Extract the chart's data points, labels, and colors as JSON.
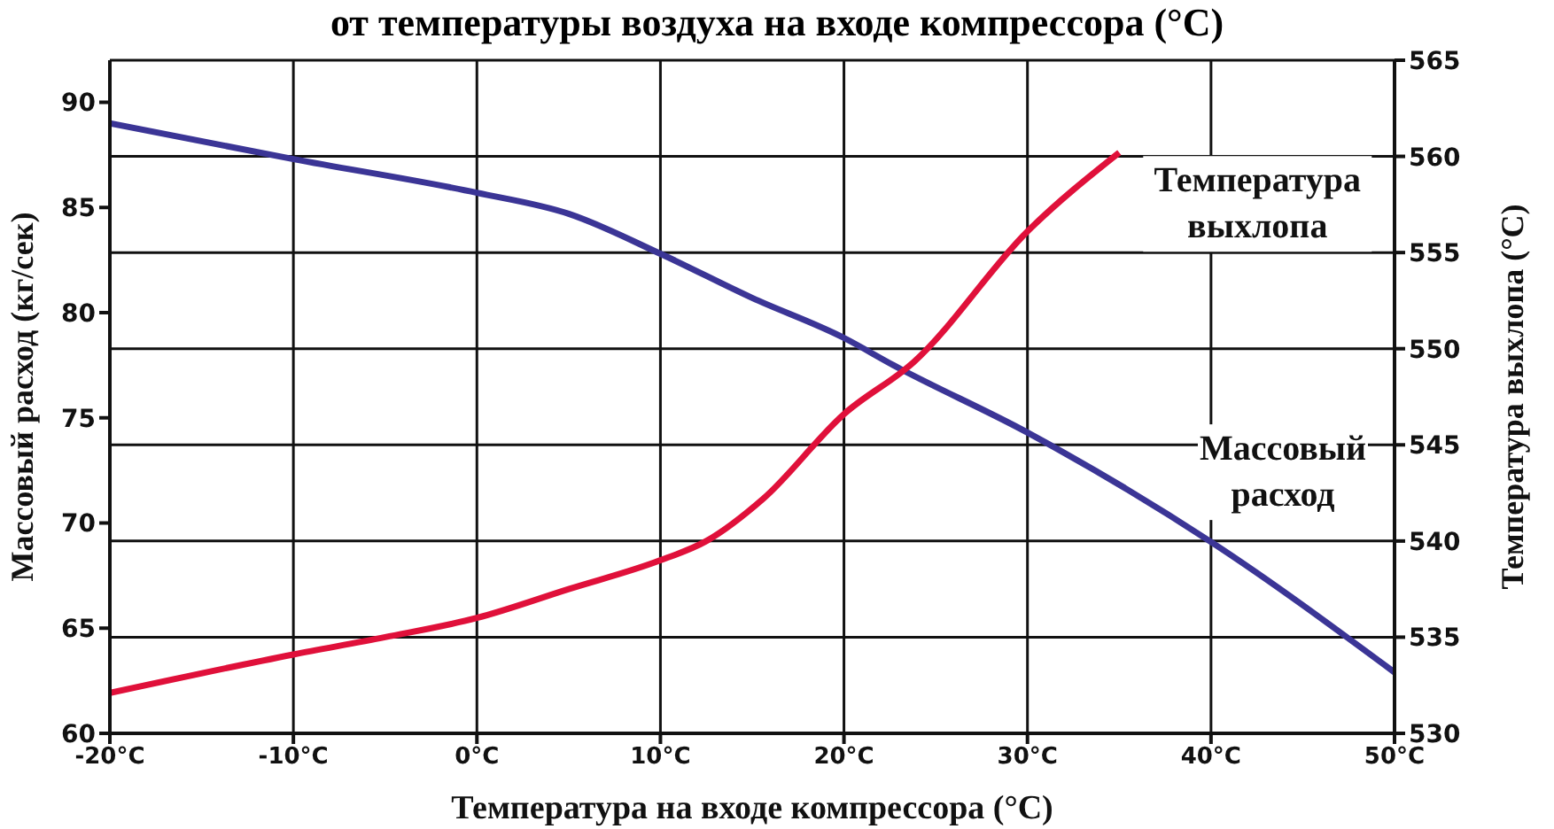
{
  "chart_data": {
    "type": "line",
    "title": "от температуры воздуха на входе компрессора (°C)",
    "xlabel": "Температура на входе компрессора (°C)",
    "ylabel": "Массовый расход (кг/сек)",
    "y2label": "Температура выхлопа (°C)",
    "xlim": [
      -20,
      50
    ],
    "xticks": [
      {
        "value": -20,
        "label": "-20°C"
      },
      {
        "value": -10,
        "label": "-10°C"
      },
      {
        "value": 0,
        "label": "0°C"
      },
      {
        "value": 10,
        "label": "10°C"
      },
      {
        "value": 20,
        "label": "20°C"
      },
      {
        "value": 30,
        "label": "30°C"
      },
      {
        "value": 40,
        "label": "40°C"
      },
      {
        "value": 50,
        "label": "50°C"
      }
    ],
    "ylim": [
      60,
      92
    ],
    "yticks": [
      60,
      65,
      70,
      75,
      80,
      85,
      90
    ],
    "y2lim": [
      530,
      565
    ],
    "y2ticks": [
      530,
      535,
      540,
      545,
      550,
      555,
      560,
      565
    ],
    "grid": true,
    "legend": false,
    "marker": "none",
    "line_style": "solid",
    "series": [
      {
        "name": "Массовый расход",
        "color": "#3b3596",
        "x": [
          -20,
          -10,
          0,
          5,
          10,
          15,
          20,
          22.7,
          30,
          40,
          50
        ],
        "values": [
          89.0,
          87.3,
          85.7,
          84.7,
          82.8,
          80.7,
          78.8,
          77.5,
          74.3,
          69.1,
          62.9
        ]
      },
      {
        "name": "Температура выхлопа",
        "color": "#e0103a",
        "axis": "y2",
        "x": [
          -20,
          -10,
          -5,
          0,
          5,
          10,
          12.5,
          15.6,
          20,
          23.8,
          30,
          35
        ],
        "values": [
          532.1,
          534.1,
          535.0,
          536.0,
          537.5,
          539.0,
          540.0,
          542.2,
          546.6,
          549.3,
          556.1,
          560.2
        ]
      }
    ]
  }
}
